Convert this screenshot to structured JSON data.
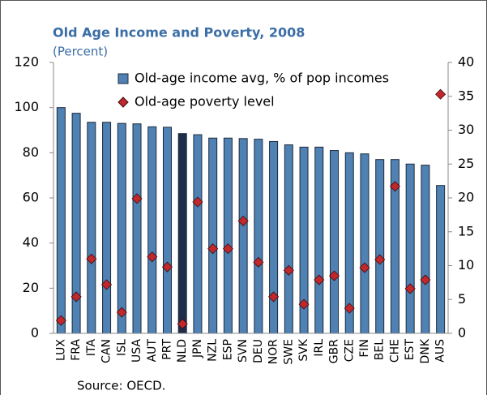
{
  "chart_data": {
    "type": "bar",
    "title": "Old Age Income and Poverty, 2008",
    "subtitle": "(Percent)",
    "source": "Source: OECD.",
    "categories": [
      "LUX",
      "FRA",
      "ITA",
      "CAN",
      "ISL",
      "USA",
      "AUT",
      "PRT",
      "NLD",
      "JPN",
      "NZL",
      "ESP",
      "SVN",
      "DEU",
      "NOR",
      "SWE",
      "SVK",
      "IRL",
      "GBR",
      "CZE",
      "FIN",
      "BEL",
      "CHE",
      "EST",
      "DNK",
      "AUS"
    ],
    "series": [
      {
        "name": "Old-age income avg, % of pop incomes",
        "type": "bar",
        "color": "#4f81b3",
        "highlight": "NLD",
        "highlight_color": "#1f2d4a",
        "values": [
          100,
          97.5,
          93.5,
          93.5,
          93,
          92.8,
          91.5,
          91.3,
          88.5,
          88,
          86.5,
          86.5,
          86.3,
          86,
          85,
          83.5,
          82.5,
          82.5,
          81,
          80,
          79.5,
          77,
          77,
          75,
          74.5,
          65.5
        ]
      },
      {
        "name": "Old-age poverty level",
        "type": "scatter",
        "axis": "y2",
        "color": "#c0282d",
        "values": [
          1.9,
          5.4,
          11,
          7.2,
          3.1,
          19.9,
          11.3,
          9.8,
          1.4,
          19.4,
          12.5,
          12.5,
          16.6,
          10.5,
          5.4,
          9.3,
          4.3,
          7.9,
          8.5,
          3.7,
          9.7,
          10.9,
          21.7,
          6.6,
          7.9,
          35.3
        ]
      }
    ],
    "ylim": [
      0,
      120
    ],
    "yticks": [
      0,
      20,
      40,
      60,
      80,
      100,
      120
    ],
    "y2lim": [
      0,
      40
    ],
    "y2ticks": [
      0,
      5,
      10,
      15,
      20,
      25,
      30,
      35,
      40
    ],
    "grid": false
  }
}
